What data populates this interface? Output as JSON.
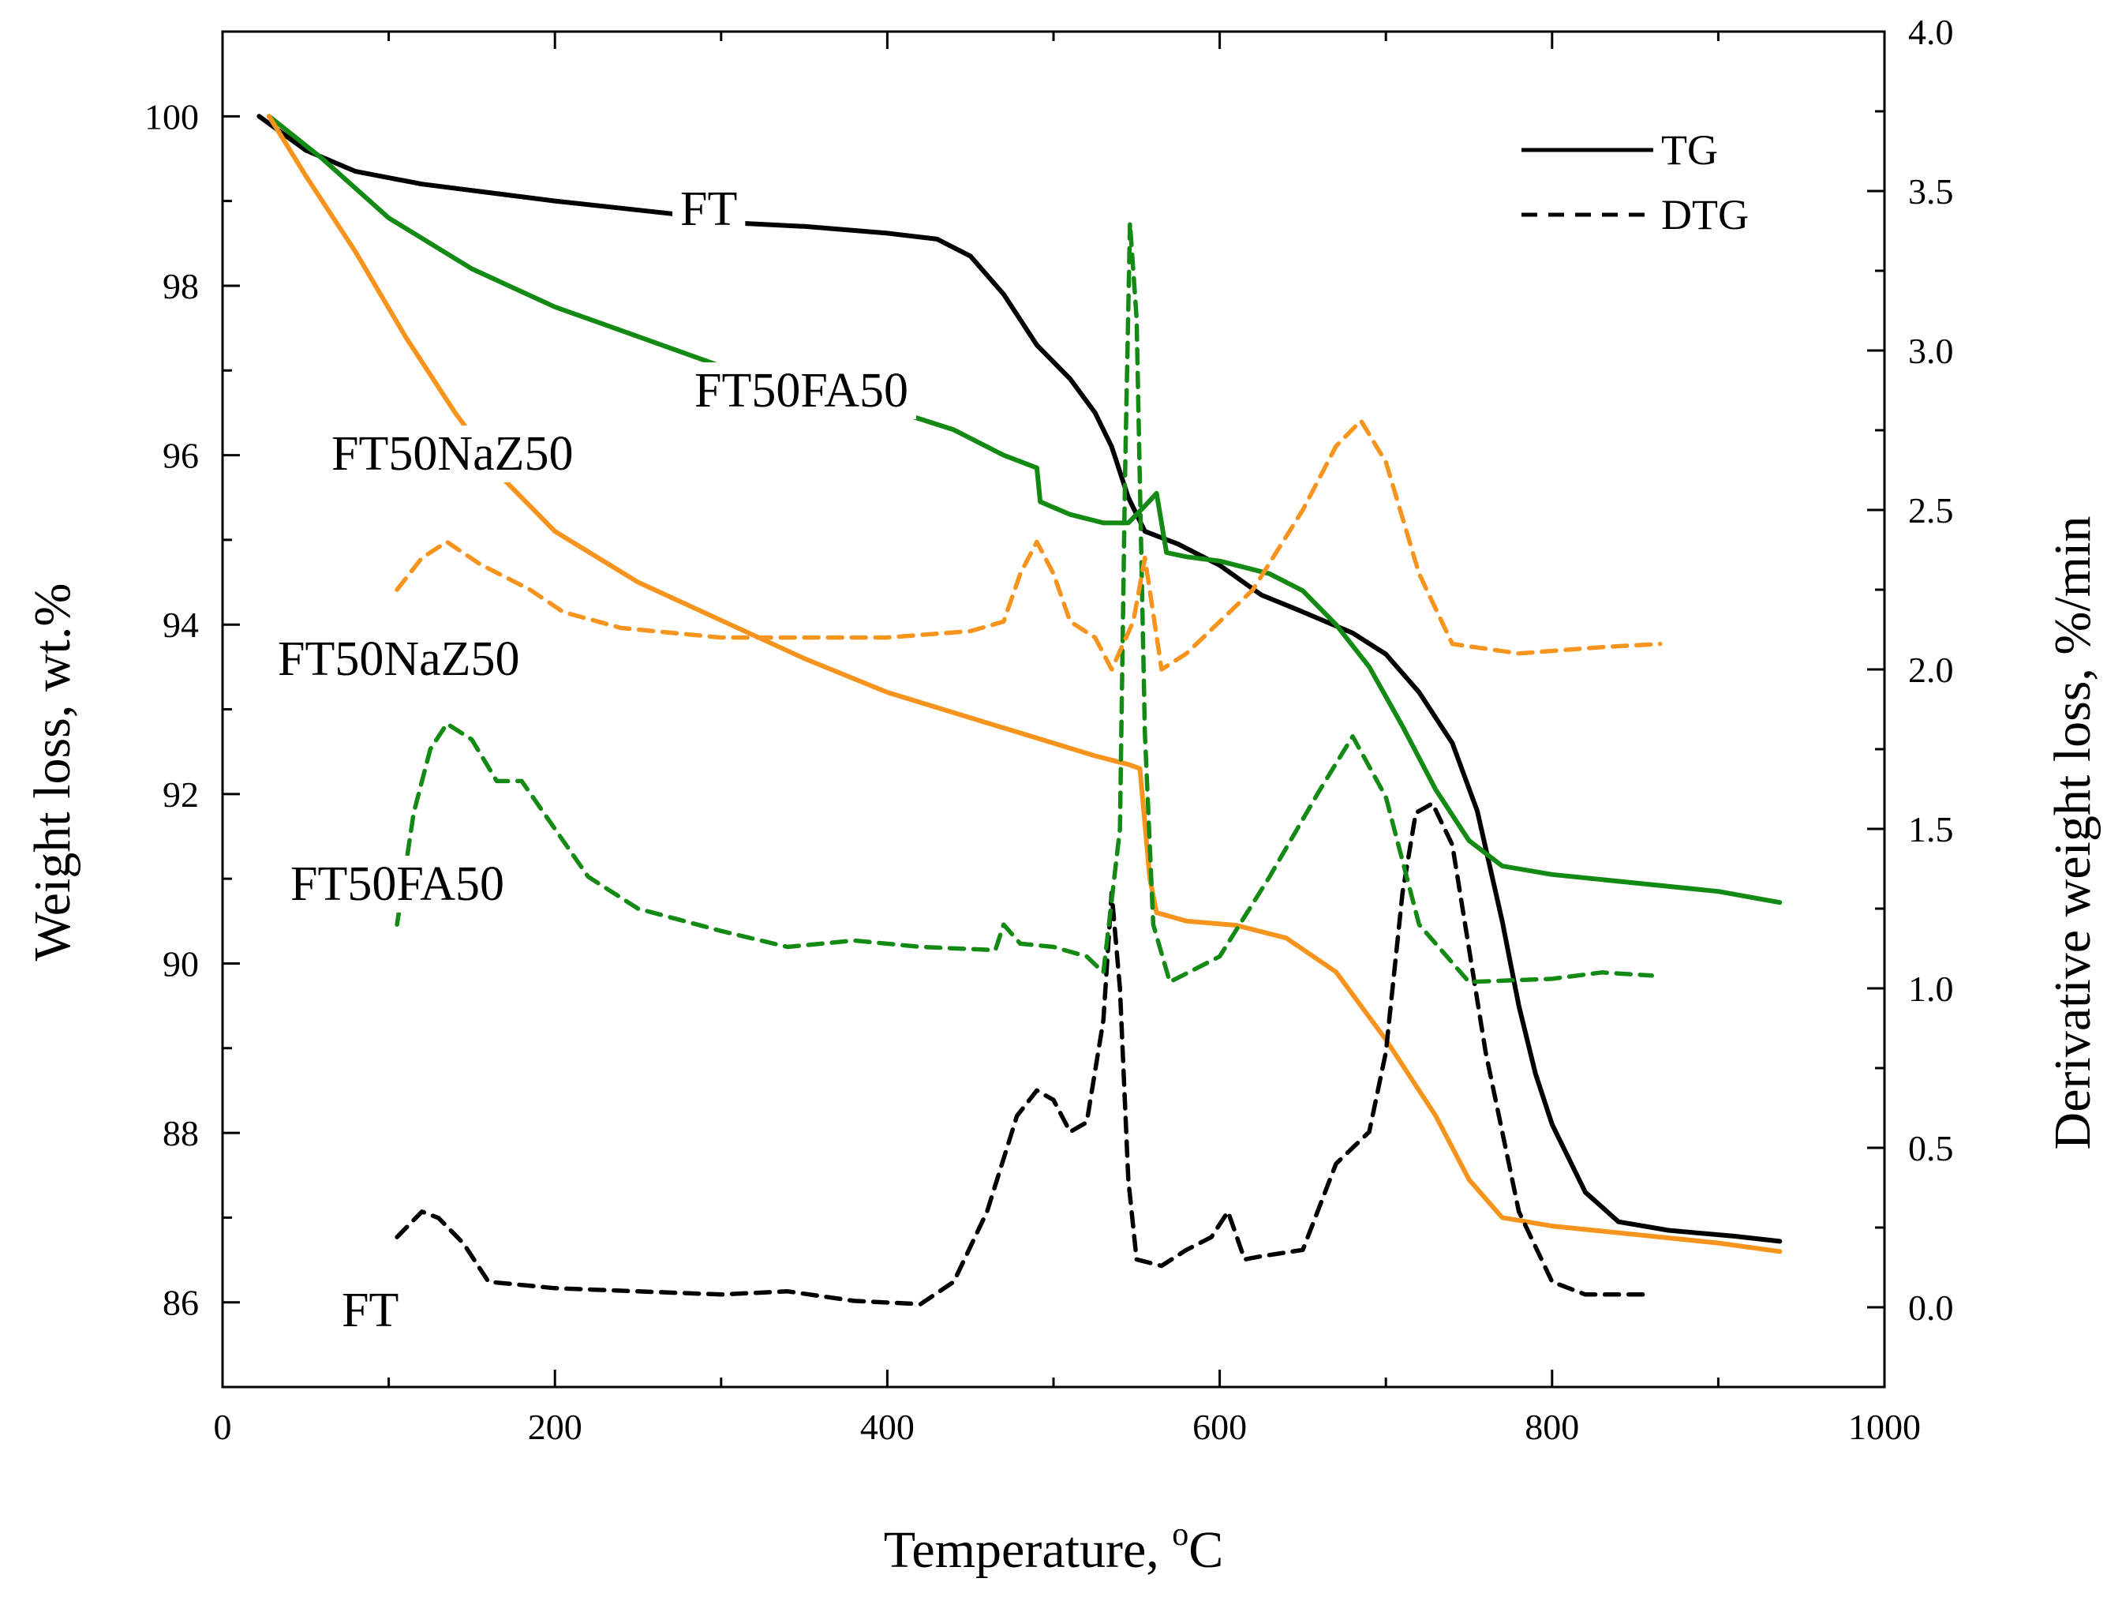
{
  "chart_data": {
    "type": "line",
    "xlabel": "Temperature, °C",
    "xlabel_parts": {
      "text": "Temperature, ",
      "sup": "o",
      "unit": "C"
    },
    "ylabel_left": "Weight loss, wt.%",
    "ylabel_right": "Derivative weight loss, %/min",
    "xlim": [
      0,
      1000
    ],
    "ylim_left": [
      85,
      101
    ],
    "ylim_right": [
      -0.25,
      4.0
    ],
    "x_ticks": [
      "0",
      "200",
      "400",
      "600",
      "800",
      "1000"
    ],
    "x_tick_values": [
      0,
      200,
      400,
      600,
      800,
      1000
    ],
    "y_left_ticks": [
      "86",
      "88",
      "90",
      "92",
      "94",
      "96",
      "98",
      "100"
    ],
    "y_left_tick_values": [
      86,
      88,
      90,
      92,
      94,
      96,
      98,
      100
    ],
    "y_right_ticks": [
      "0.0",
      "0.5",
      "1.0",
      "1.5",
      "2.0",
      "2.5",
      "3.0",
      "3.5",
      "4.0"
    ],
    "y_right_tick_values": [
      0.0,
      0.5,
      1.0,
      1.5,
      2.0,
      2.5,
      3.0,
      3.5,
      4.0
    ],
    "grid": false,
    "legend": {
      "placement": "top-right",
      "entries": [
        {
          "label": "TG",
          "style": "solid"
        },
        {
          "label": "DTG",
          "style": "dashed"
        }
      ]
    },
    "colors": {
      "FT": "#000000",
      "FT50FA50": "#138a13",
      "FT50NaZ50": "#f7941d"
    },
    "series": [
      {
        "name": "FT",
        "kind": "TG",
        "axis": "left",
        "color": "#000000",
        "points": [
          [
            22,
            100.0
          ],
          [
            50,
            99.6
          ],
          [
            80,
            99.35
          ],
          [
            120,
            99.2
          ],
          [
            200,
            99.0
          ],
          [
            270,
            98.85
          ],
          [
            300,
            98.75
          ],
          [
            350,
            98.7
          ],
          [
            400,
            98.62
          ],
          [
            430,
            98.55
          ],
          [
            450,
            98.35
          ],
          [
            470,
            97.9
          ],
          [
            490,
            97.3
          ],
          [
            510,
            96.9
          ],
          [
            525,
            96.5
          ],
          [
            535,
            96.1
          ],
          [
            545,
            95.5
          ],
          [
            555,
            95.1
          ],
          [
            575,
            94.95
          ],
          [
            600,
            94.7
          ],
          [
            625,
            94.35
          ],
          [
            650,
            94.15
          ],
          [
            680,
            93.9
          ],
          [
            700,
            93.65
          ],
          [
            720,
            93.2
          ],
          [
            740,
            92.6
          ],
          [
            755,
            91.8
          ],
          [
            770,
            90.5
          ],
          [
            780,
            89.5
          ],
          [
            790,
            88.7
          ],
          [
            800,
            88.1
          ],
          [
            820,
            87.3
          ],
          [
            840,
            86.95
          ],
          [
            870,
            86.85
          ],
          [
            910,
            86.78
          ],
          [
            937,
            86.72
          ]
        ]
      },
      {
        "name": "FT50FA50",
        "kind": "TG",
        "axis": "left",
        "color": "#138a13",
        "points": [
          [
            28,
            100.0
          ],
          [
            60,
            99.5
          ],
          [
            100,
            98.8
          ],
          [
            150,
            98.2
          ],
          [
            200,
            97.75
          ],
          [
            250,
            97.4
          ],
          [
            300,
            97.05
          ],
          [
            350,
            96.8
          ],
          [
            400,
            96.55
          ],
          [
            440,
            96.3
          ],
          [
            470,
            96.0
          ],
          [
            490,
            95.85
          ],
          [
            492,
            95.45
          ],
          [
            510,
            95.3
          ],
          [
            530,
            95.2
          ],
          [
            545,
            95.2
          ],
          [
            555,
            95.4
          ],
          [
            562,
            95.55
          ],
          [
            568,
            94.85
          ],
          [
            580,
            94.8
          ],
          [
            600,
            94.75
          ],
          [
            630,
            94.6
          ],
          [
            650,
            94.4
          ],
          [
            670,
            94.0
          ],
          [
            690,
            93.5
          ],
          [
            710,
            92.8
          ],
          [
            730,
            92.05
          ],
          [
            750,
            91.45
          ],
          [
            770,
            91.15
          ],
          [
            800,
            91.05
          ],
          [
            850,
            90.95
          ],
          [
            900,
            90.85
          ],
          [
            937,
            90.72
          ]
        ]
      },
      {
        "name": "FT50NaZ50",
        "kind": "TG",
        "axis": "left",
        "color": "#f7941d",
        "points": [
          [
            28,
            100.0
          ],
          [
            50,
            99.3
          ],
          [
            80,
            98.4
          ],
          [
            110,
            97.4
          ],
          [
            140,
            96.5
          ],
          [
            170,
            95.7
          ],
          [
            200,
            95.1
          ],
          [
            250,
            94.5
          ],
          [
            300,
            94.05
          ],
          [
            350,
            93.6
          ],
          [
            400,
            93.2
          ],
          [
            450,
            92.9
          ],
          [
            475,
            92.75
          ],
          [
            500,
            92.6
          ],
          [
            525,
            92.45
          ],
          [
            545,
            92.35
          ],
          [
            552,
            92.3
          ],
          [
            558,
            91.0
          ],
          [
            562,
            90.6
          ],
          [
            580,
            90.5
          ],
          [
            610,
            90.45
          ],
          [
            640,
            90.3
          ],
          [
            670,
            89.9
          ],
          [
            700,
            89.1
          ],
          [
            730,
            88.2
          ],
          [
            750,
            87.45
          ],
          [
            770,
            87.0
          ],
          [
            800,
            86.9
          ],
          [
            850,
            86.8
          ],
          [
            900,
            86.7
          ],
          [
            937,
            86.6
          ]
        ]
      },
      {
        "name": "FT",
        "kind": "DTG",
        "axis": "right",
        "color": "#000000",
        "points": [
          [
            105,
            0.22
          ],
          [
            120,
            0.3
          ],
          [
            130,
            0.28
          ],
          [
            145,
            0.2
          ],
          [
            160,
            0.08
          ],
          [
            200,
            0.06
          ],
          [
            300,
            0.04
          ],
          [
            340,
            0.05
          ],
          [
            380,
            0.02
          ],
          [
            420,
            0.01
          ],
          [
            440,
            0.08
          ],
          [
            460,
            0.3
          ],
          [
            478,
            0.6
          ],
          [
            490,
            0.68
          ],
          [
            500,
            0.65
          ],
          [
            510,
            0.55
          ],
          [
            520,
            0.58
          ],
          [
            530,
            0.9
          ],
          [
            535,
            1.3
          ],
          [
            540,
            1.0
          ],
          [
            545,
            0.4
          ],
          [
            550,
            0.15
          ],
          [
            565,
            0.13
          ],
          [
            580,
            0.18
          ],
          [
            595,
            0.22
          ],
          [
            605,
            0.3
          ],
          [
            615,
            0.15
          ],
          [
            625,
            0.16
          ],
          [
            650,
            0.18
          ],
          [
            670,
            0.45
          ],
          [
            690,
            0.55
          ],
          [
            700,
            0.8
          ],
          [
            710,
            1.3
          ],
          [
            718,
            1.55
          ],
          [
            728,
            1.58
          ],
          [
            740,
            1.45
          ],
          [
            760,
            0.8
          ],
          [
            780,
            0.3
          ],
          [
            800,
            0.08
          ],
          [
            820,
            0.04
          ],
          [
            860,
            0.04
          ]
        ]
      },
      {
        "name": "FT50FA50",
        "kind": "DTG",
        "axis": "right",
        "color": "#138a13",
        "points": [
          [
            105,
            1.2
          ],
          [
            115,
            1.55
          ],
          [
            125,
            1.75
          ],
          [
            135,
            1.83
          ],
          [
            150,
            1.78
          ],
          [
            165,
            1.65
          ],
          [
            180,
            1.65
          ],
          [
            200,
            1.5
          ],
          [
            220,
            1.35
          ],
          [
            250,
            1.25
          ],
          [
            300,
            1.18
          ],
          [
            340,
            1.13
          ],
          [
            380,
            1.15
          ],
          [
            420,
            1.13
          ],
          [
            465,
            1.12
          ],
          [
            470,
            1.2
          ],
          [
            480,
            1.14
          ],
          [
            500,
            1.13
          ],
          [
            520,
            1.1
          ],
          [
            530,
            1.05
          ],
          [
            540,
            1.5
          ],
          [
            543,
            2.6
          ],
          [
            546,
            3.4
          ],
          [
            550,
            3.1
          ],
          [
            555,
            1.8
          ],
          [
            560,
            1.2
          ],
          [
            570,
            1.02
          ],
          [
            600,
            1.1
          ],
          [
            630,
            1.35
          ],
          [
            660,
            1.62
          ],
          [
            680,
            1.79
          ],
          [
            700,
            1.6
          ],
          [
            720,
            1.2
          ],
          [
            750,
            1.02
          ],
          [
            800,
            1.03
          ],
          [
            830,
            1.05
          ],
          [
            860,
            1.04
          ]
        ]
      },
      {
        "name": "FT50NaZ50",
        "kind": "DTG",
        "axis": "right",
        "color": "#f7941d",
        "points": [
          [
            105,
            2.25
          ],
          [
            120,
            2.35
          ],
          [
            135,
            2.4
          ],
          [
            155,
            2.33
          ],
          [
            185,
            2.25
          ],
          [
            205,
            2.18
          ],
          [
            240,
            2.13
          ],
          [
            300,
            2.1
          ],
          [
            400,
            2.1
          ],
          [
            450,
            2.12
          ],
          [
            470,
            2.15
          ],
          [
            480,
            2.3
          ],
          [
            490,
            2.4
          ],
          [
            500,
            2.3
          ],
          [
            510,
            2.15
          ],
          [
            525,
            2.1
          ],
          [
            535,
            2.0
          ],
          [
            548,
            2.15
          ],
          [
            555,
            2.35
          ],
          [
            565,
            2.0
          ],
          [
            580,
            2.05
          ],
          [
            620,
            2.25
          ],
          [
            650,
            2.5
          ],
          [
            670,
            2.7
          ],
          [
            685,
            2.78
          ],
          [
            700,
            2.65
          ],
          [
            720,
            2.3
          ],
          [
            740,
            2.08
          ],
          [
            780,
            2.05
          ],
          [
            830,
            2.07
          ],
          [
            865,
            2.08
          ]
        ]
      }
    ],
    "annotations": [
      "FT",
      "FT50FA50",
      "FT50NaZ50",
      "FT50NaZ50",
      "FT50FA50",
      "FT"
    ]
  }
}
